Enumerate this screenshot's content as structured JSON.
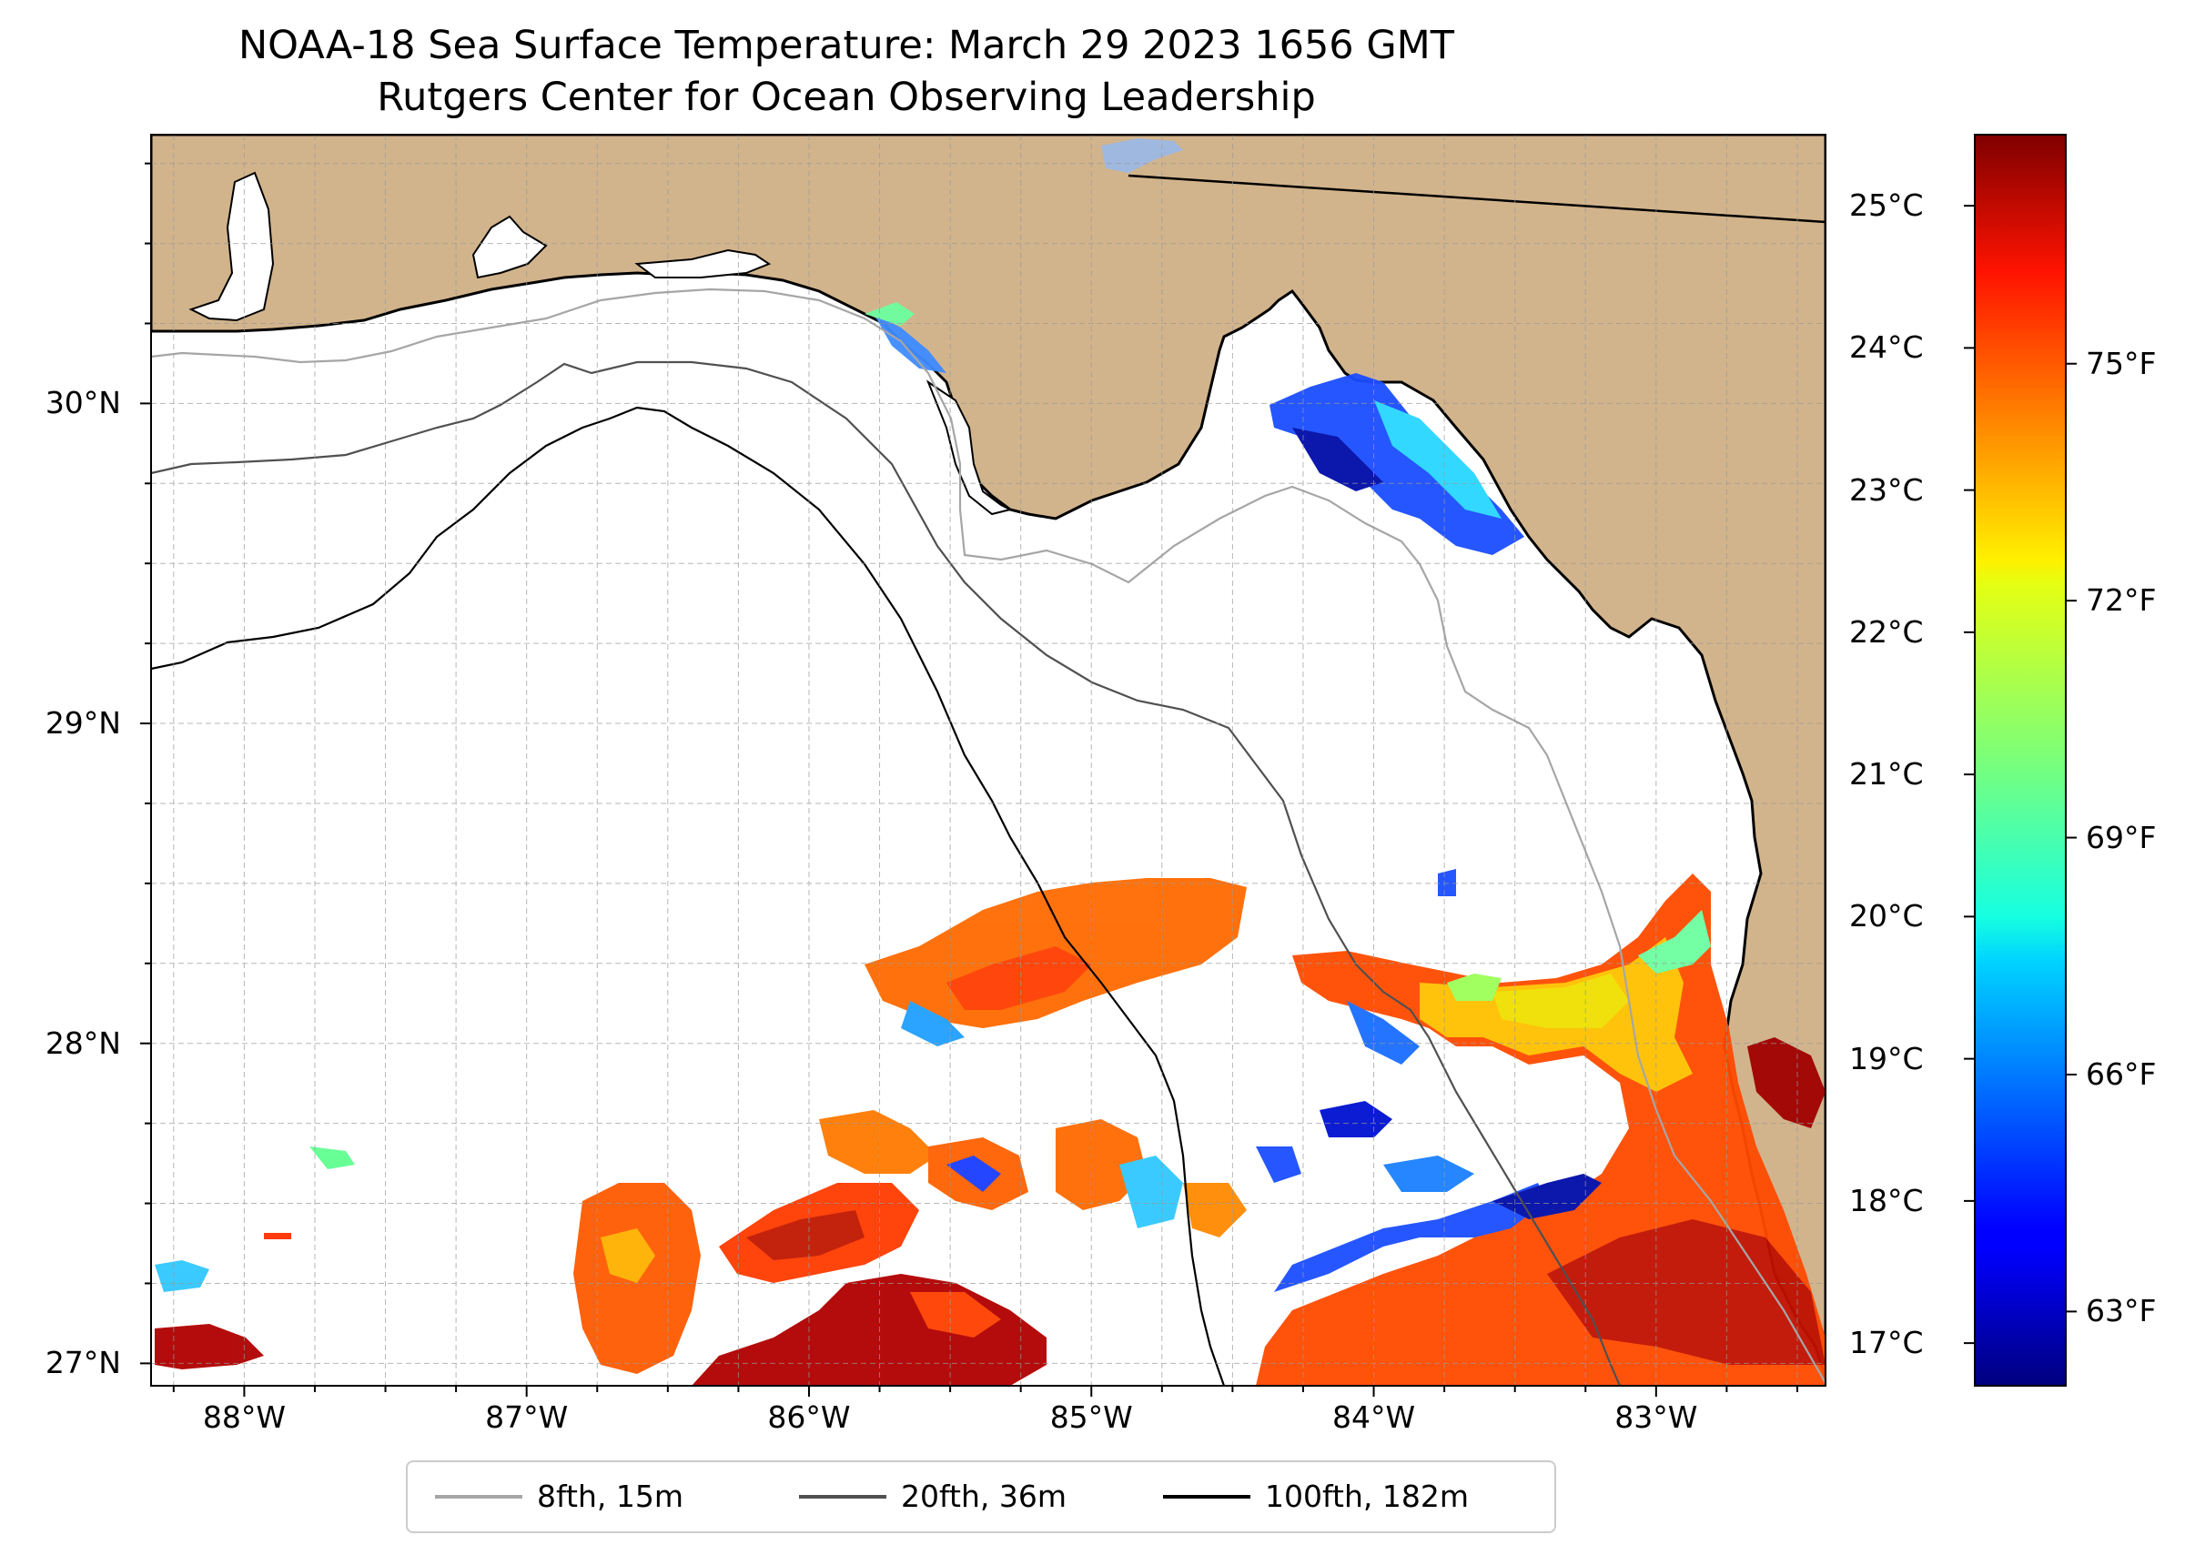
{
  "title": {
    "line1": "NOAA-18 Sea Surface Temperature: March 29 2023 1656 GMT",
    "line2": "Rutgers Center for Ocean Observing Leadership"
  },
  "map": {
    "lon_range": [
      -88.33,
      -82.4
    ],
    "lat_range": [
      26.93,
      30.84
    ],
    "lat_ticks": [
      {
        "value": 30,
        "label": "30°N"
      },
      {
        "value": 29,
        "label": "29°N"
      },
      {
        "value": 28,
        "label": "28°N"
      },
      {
        "value": 27,
        "label": "27°N"
      }
    ],
    "lon_ticks": [
      {
        "value": -88,
        "label": "88°W"
      },
      {
        "value": -87,
        "label": "87°W"
      },
      {
        "value": -86,
        "label": "86°W"
      },
      {
        "value": -85,
        "label": "85°W"
      },
      {
        "value": -84,
        "label": "84°W"
      },
      {
        "value": -83,
        "label": "83°W"
      }
    ],
    "land_color": "#d2b48c",
    "ocean_color": "#ffffff",
    "lake_color": "#9fb8e0"
  },
  "colorbar": {
    "colormap": "jet",
    "range_c": [
      16.7,
      25.5
    ],
    "celsius_ticks": [
      {
        "value": 17,
        "label": "17°C"
      },
      {
        "value": 18,
        "label": "18°C"
      },
      {
        "value": 19,
        "label": "19°C"
      },
      {
        "value": 20,
        "label": "20°C"
      },
      {
        "value": 21,
        "label": "21°C"
      },
      {
        "value": 22,
        "label": "22°C"
      },
      {
        "value": 23,
        "label": "23°C"
      },
      {
        "value": 24,
        "label": "24°C"
      },
      {
        "value": 25,
        "label": "25°C"
      }
    ],
    "fahrenheit_ticks": [
      {
        "value": 63,
        "label": "63°F"
      },
      {
        "value": 66,
        "label": "66°F"
      },
      {
        "value": 69,
        "label": "69°F"
      },
      {
        "value": 72,
        "label": "72°F"
      },
      {
        "value": 75,
        "label": "75°F"
      }
    ]
  },
  "legend": {
    "items": [
      {
        "label": "8fth, 15m",
        "color": "#a6a6a6"
      },
      {
        "label": "20fth, 36m",
        "color": "#505050"
      },
      {
        "label": "100fth, 182m",
        "color": "#000000"
      }
    ]
  }
}
